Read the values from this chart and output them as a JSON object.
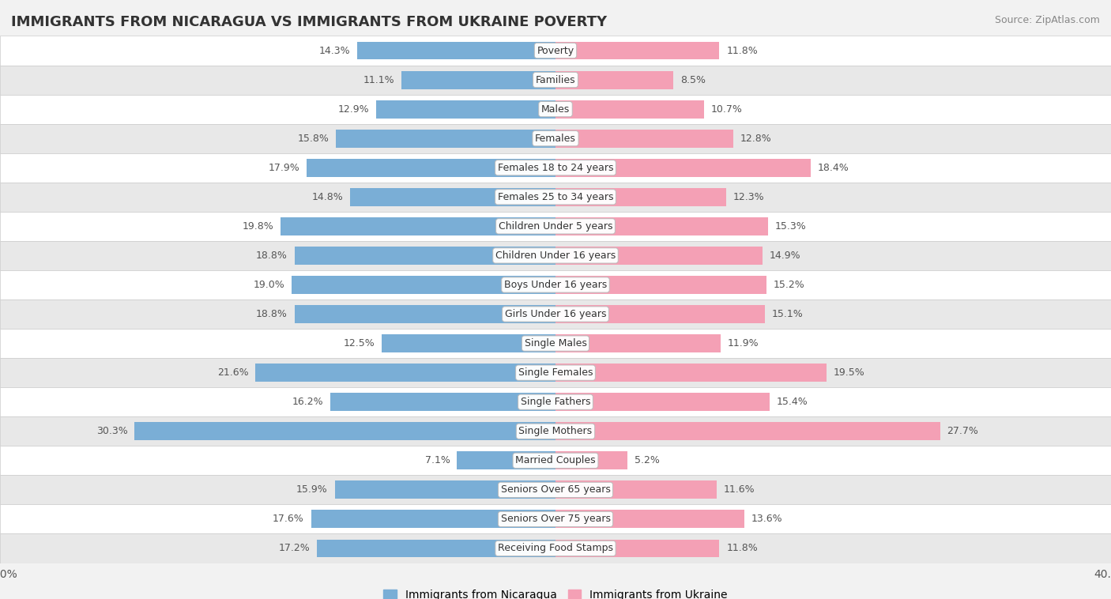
{
  "title": "IMMIGRANTS FROM NICARAGUA VS IMMIGRANTS FROM UKRAINE POVERTY",
  "source": "Source: ZipAtlas.com",
  "categories": [
    "Poverty",
    "Families",
    "Males",
    "Females",
    "Females 18 to 24 years",
    "Females 25 to 34 years",
    "Children Under 5 years",
    "Children Under 16 years",
    "Boys Under 16 years",
    "Girls Under 16 years",
    "Single Males",
    "Single Females",
    "Single Fathers",
    "Single Mothers",
    "Married Couples",
    "Seniors Over 65 years",
    "Seniors Over 75 years",
    "Receiving Food Stamps"
  ],
  "nicaragua_values": [
    14.3,
    11.1,
    12.9,
    15.8,
    17.9,
    14.8,
    19.8,
    18.8,
    19.0,
    18.8,
    12.5,
    21.6,
    16.2,
    30.3,
    7.1,
    15.9,
    17.6,
    17.2
  ],
  "ukraine_values": [
    11.8,
    8.5,
    10.7,
    12.8,
    18.4,
    12.3,
    15.3,
    14.9,
    15.2,
    15.1,
    11.9,
    19.5,
    15.4,
    27.7,
    5.2,
    11.6,
    13.6,
    11.8
  ],
  "nicaragua_color": "#7aaed6",
  "ukraine_color": "#f4a0b5",
  "label_color": "#555555",
  "bar_height": 0.62,
  "xlim": 40.0,
  "bg_color": "#f2f2f2",
  "row_bg_even": "#ffffff",
  "row_bg_odd": "#e8e8e8",
  "legend_nicaragua": "Immigrants from Nicaragua",
  "legend_ukraine": "Immigrants from Ukraine",
  "title_fontsize": 13,
  "source_fontsize": 9,
  "value_fontsize": 9,
  "cat_fontsize": 9
}
